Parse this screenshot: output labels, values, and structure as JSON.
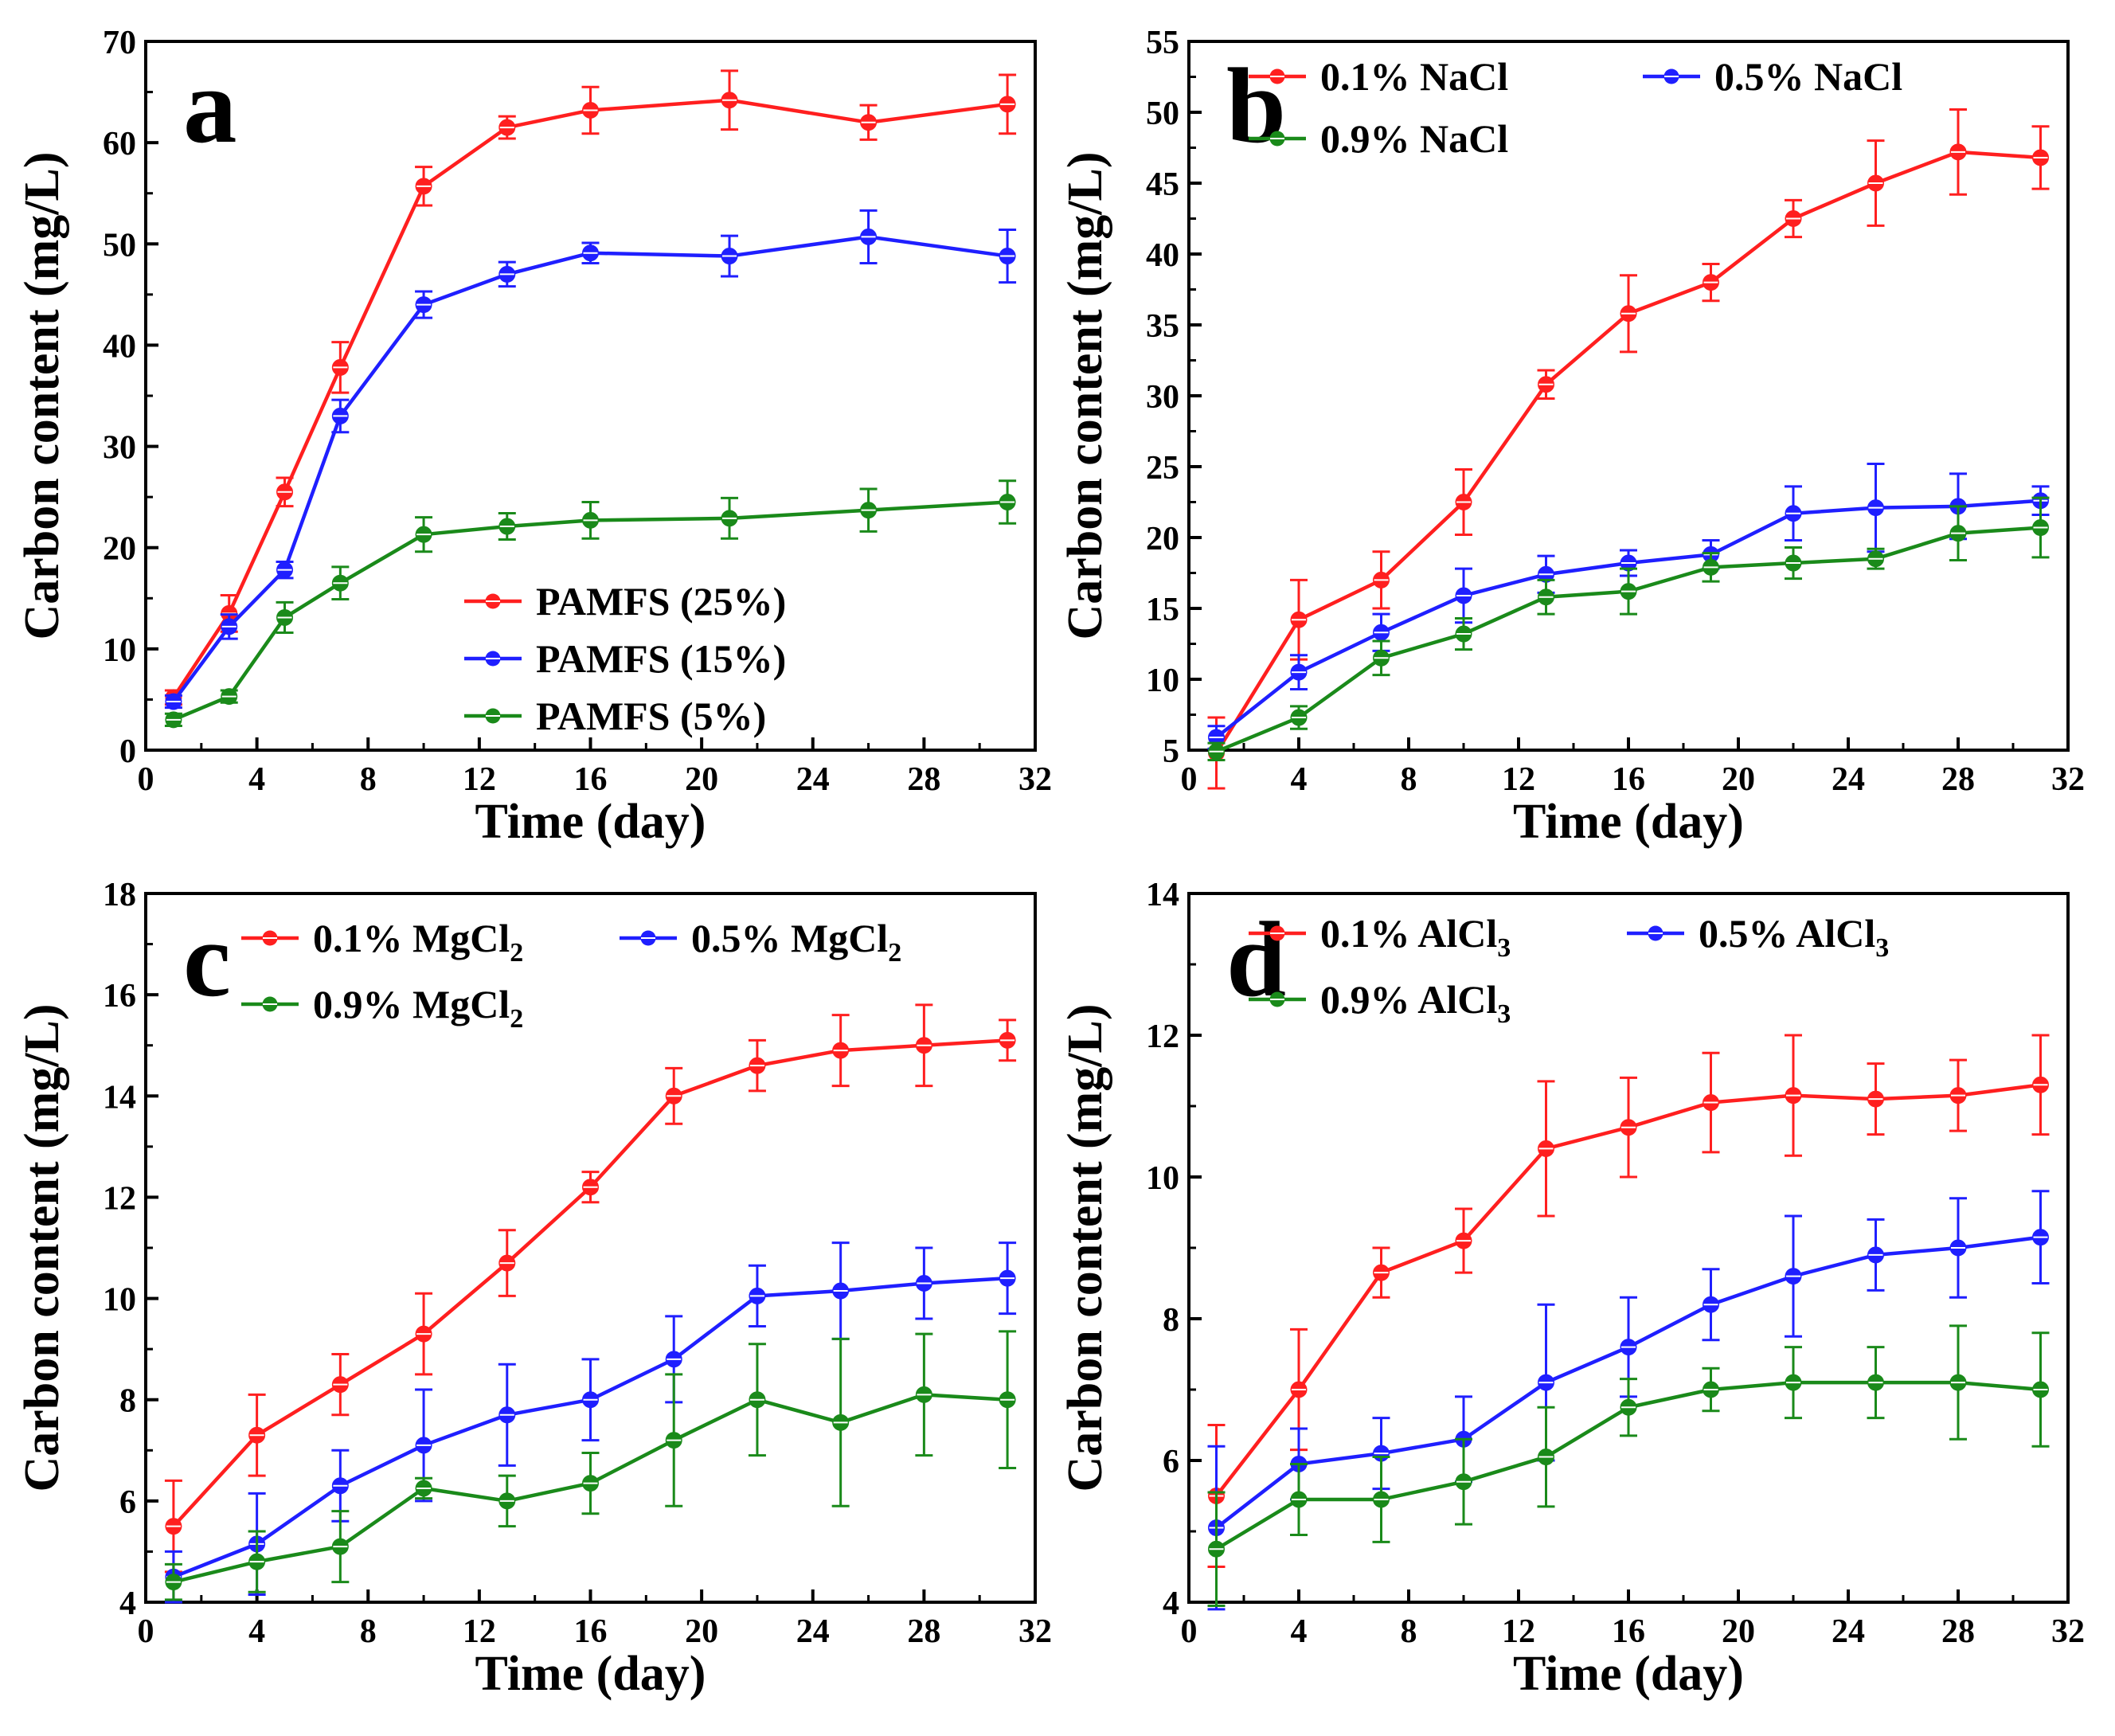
{
  "figure": {
    "panel_count": 4
  },
  "chart_data": [
    {
      "panel": "a",
      "type": "line",
      "xlabel": "Time (day)",
      "ylabel": "Carbon content (mg/L)",
      "xlim": [
        0,
        32
      ],
      "ylim": [
        0,
        70
      ],
      "xticks": [
        0,
        4,
        8,
        12,
        16,
        20,
        24,
        28,
        32
      ],
      "yticks": [
        0,
        10,
        20,
        30,
        40,
        50,
        60,
        70
      ],
      "legend": {
        "placement": "bottom-right",
        "columns": 1
      },
      "x": [
        1,
        3,
        5,
        7,
        10,
        13,
        16,
        21,
        26,
        31
      ],
      "series": [
        {
          "name": "PAMFS (25%)",
          "color": "#ff1f1f",
          "values": [
            5.2,
            13.5,
            25.5,
            37.8,
            55.7,
            61.5,
            63.2,
            64.2,
            62.0,
            63.8
          ],
          "errors": [
            0.7,
            1.8,
            1.4,
            2.5,
            1.9,
            1.1,
            2.3,
            2.9,
            1.7,
            2.9
          ]
        },
        {
          "name": "PAMFS (15%)",
          "color": "#1f1fff",
          "values": [
            4.8,
            12.2,
            17.8,
            33.0,
            44.0,
            47.0,
            49.1,
            48.8,
            50.7,
            48.8
          ],
          "errors": [
            0.6,
            1.2,
            0.8,
            1.6,
            1.3,
            1.2,
            1.0,
            2.0,
            2.6,
            2.6
          ]
        },
        {
          "name": "PAMFS (5%)",
          "color": "#1a8a1a",
          "values": [
            3.0,
            5.3,
            13.1,
            16.5,
            21.3,
            22.1,
            22.7,
            22.9,
            23.7,
            24.5
          ],
          "errors": [
            0.6,
            0.6,
            1.5,
            1.6,
            1.7,
            1.3,
            1.8,
            2.0,
            2.1,
            2.1
          ]
        }
      ]
    },
    {
      "panel": "b",
      "type": "line",
      "xlabel": "Time (day)",
      "ylabel": "Carbon content (mg/L)",
      "xlim": [
        0,
        32
      ],
      "ylim": [
        5,
        55
      ],
      "xticks": [
        0,
        4,
        8,
        12,
        16,
        20,
        24,
        28,
        32
      ],
      "yticks": [
        5,
        10,
        15,
        20,
        25,
        30,
        35,
        40,
        45,
        50,
        55
      ],
      "legend": {
        "placement": "top-left",
        "columns": 2
      },
      "x": [
        1,
        4,
        7,
        10,
        13,
        16,
        19,
        22,
        25,
        28,
        31
      ],
      "series": [
        {
          "name": "0.1% NaCl",
          "color": "#ff1f1f",
          "values": [
            4.8,
            14.2,
            17.0,
            22.5,
            30.8,
            35.8,
            38.0,
            42.5,
            45.0,
            47.2,
            46.8
          ],
          "errors": [
            2.5,
            2.8,
            2.0,
            2.3,
            1.0,
            2.7,
            1.3,
            1.3,
            3.0,
            3.0,
            2.2
          ]
        },
        {
          "name": "0.5% NaCl",
          "color": "#1f1fff",
          "values": [
            5.9,
            10.5,
            13.3,
            15.9,
            17.4,
            18.2,
            18.8,
            21.7,
            22.1,
            22.2,
            22.6
          ],
          "errors": [
            0.8,
            1.2,
            1.3,
            1.9,
            1.3,
            0.9,
            1.0,
            1.9,
            3.1,
            2.3,
            1.0
          ]
        },
        {
          "name": "0.9% NaCl",
          "color": "#1a8a1a",
          "values": [
            4.9,
            7.3,
            11.5,
            13.2,
            15.8,
            16.2,
            17.9,
            18.2,
            18.5,
            20.3,
            20.7
          ],
          "errors": [
            0.6,
            0.8,
            1.2,
            1.1,
            1.2,
            1.6,
            1.0,
            1.1,
            0.7,
            1.9,
            2.1
          ]
        }
      ]
    },
    {
      "panel": "c",
      "type": "line",
      "xlabel": "Time (day)",
      "ylabel": "Carbon content (mg/L)",
      "xlim": [
        0,
        32
      ],
      "ylim": [
        4,
        18
      ],
      "xticks": [
        0,
        4,
        8,
        12,
        16,
        20,
        24,
        28,
        32
      ],
      "yticks": [
        4,
        6,
        8,
        10,
        12,
        14,
        16,
        18
      ],
      "legend": {
        "placement": "top-left",
        "columns": 2
      },
      "x": [
        1,
        4,
        7,
        10,
        13,
        16,
        19,
        22,
        25,
        28,
        31
      ],
      "series": [
        {
          "name": "0.1% MgCl",
          "name_sub": "2",
          "color": "#ff1f1f",
          "values": [
            5.5,
            7.3,
            8.3,
            9.3,
            10.7,
            12.2,
            14.0,
            14.6,
            14.9,
            15.0,
            15.1
          ],
          "errors": [
            0.9,
            0.8,
            0.6,
            0.8,
            0.65,
            0.3,
            0.55,
            0.5,
            0.7,
            0.8,
            0.4
          ]
        },
        {
          "name": "0.5% MgCl",
          "name_sub": "2",
          "color": "#1f1fff",
          "values": [
            4.5,
            5.15,
            6.3,
            7.1,
            7.7,
            8.0,
            8.8,
            10.05,
            10.15,
            10.3,
            10.4
          ],
          "errors": [
            0.5,
            1.0,
            0.7,
            1.1,
            1.0,
            0.8,
            0.85,
            0.6,
            0.95,
            0.7,
            0.7
          ]
        },
        {
          "name": "0.9% MgCl",
          "name_sub": "2",
          "color": "#1a8a1a",
          "values": [
            4.4,
            4.8,
            5.1,
            6.25,
            6.0,
            6.35,
            7.2,
            8.0,
            7.55,
            8.1,
            8.0
          ],
          "errors": [
            0.35,
            0.6,
            0.7,
            0.2,
            0.5,
            0.6,
            1.3,
            1.1,
            1.65,
            1.2,
            1.35
          ]
        }
      ]
    },
    {
      "panel": "d",
      "type": "line",
      "xlabel": "Time (day)",
      "ylabel": "Carbon content (mg/L)",
      "xlim": [
        0,
        32
      ],
      "ylim": [
        4,
        14
      ],
      "xticks": [
        0,
        4,
        8,
        12,
        16,
        20,
        24,
        28,
        32
      ],
      "yticks": [
        4,
        6,
        8,
        10,
        12,
        14
      ],
      "legend": {
        "placement": "top-left",
        "columns": 2
      },
      "x": [
        1,
        4,
        7,
        10,
        13,
        16,
        19,
        22,
        25,
        28,
        31
      ],
      "series": [
        {
          "name": "0.1% AlCl",
          "name_sub": "3",
          "color": "#ff1f1f",
          "values": [
            5.5,
            7.0,
            8.65,
            9.1,
            10.4,
            10.7,
            11.05,
            11.15,
            11.1,
            11.15,
            11.3
          ],
          "errors": [
            1.0,
            0.85,
            0.35,
            0.45,
            0.95,
            0.7,
            0.7,
            0.85,
            0.5,
            0.5,
            0.7
          ]
        },
        {
          "name": "0.5% AlCl",
          "name_sub": "3",
          "color": "#1f1fff",
          "values": [
            5.05,
            5.95,
            6.1,
            6.3,
            7.1,
            7.6,
            8.2,
            8.6,
            8.9,
            9.0,
            9.15
          ],
          "errors": [
            1.15,
            0.5,
            0.5,
            0.6,
            1.1,
            0.7,
            0.5,
            0.85,
            0.5,
            0.7,
            0.65
          ]
        },
        {
          "name": "0.9% AlCl",
          "name_sub": "3",
          "color": "#1a8a1a",
          "values": [
            4.75,
            5.45,
            5.45,
            5.7,
            6.05,
            6.75,
            7.0,
            7.1,
            7.1,
            7.1,
            7.0
          ],
          "errors": [
            0.8,
            0.5,
            0.6,
            0.6,
            0.7,
            0.4,
            0.3,
            0.5,
            0.5,
            0.8,
            0.8
          ]
        }
      ]
    }
  ]
}
